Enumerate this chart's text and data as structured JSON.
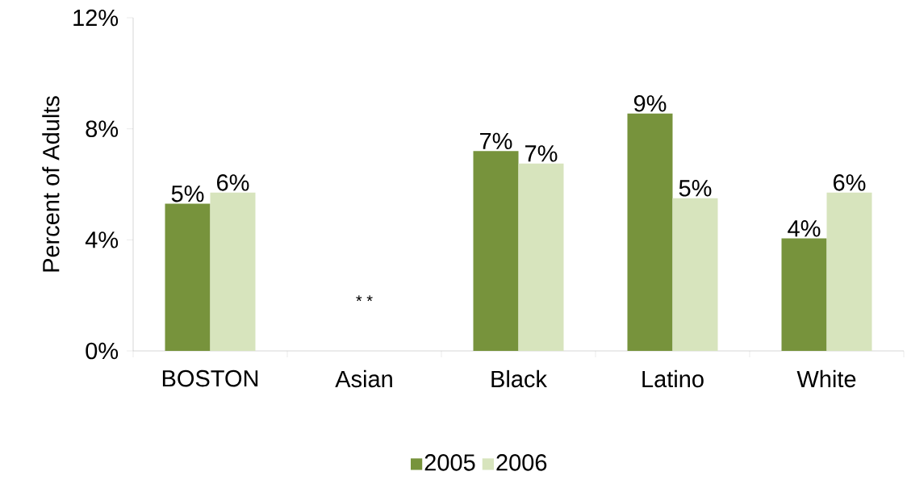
{
  "chart_data": {
    "type": "bar",
    "ylabel": "Percent of Adults",
    "categories": [
      "BOSTON",
      "Asian",
      "Black",
      "Latino",
      "White"
    ],
    "series": [
      {
        "name": "2005",
        "color": "#77933c",
        "values": [
          5.3,
          null,
          7.2,
          8.55,
          4.05
        ],
        "value_labels": [
          "5%",
          null,
          "7%",
          "9%",
          "4%"
        ]
      },
      {
        "name": "2006",
        "color": "#d7e4bd",
        "values": [
          5.7,
          null,
          6.75,
          5.5,
          5.7
        ],
        "value_labels": [
          "6%",
          null,
          "7%",
          "5%",
          "6%"
        ]
      }
    ],
    "ylim": [
      0,
      12
    ],
    "yticks": [
      {
        "value": 0,
        "label": "0%"
      },
      {
        "value": 4,
        "label": "4%"
      },
      {
        "value": 8,
        "label": "8%"
      },
      {
        "value": 12,
        "label": "12%"
      }
    ],
    "legend": "bottom",
    "annotations": [
      "* *"
    ]
  }
}
